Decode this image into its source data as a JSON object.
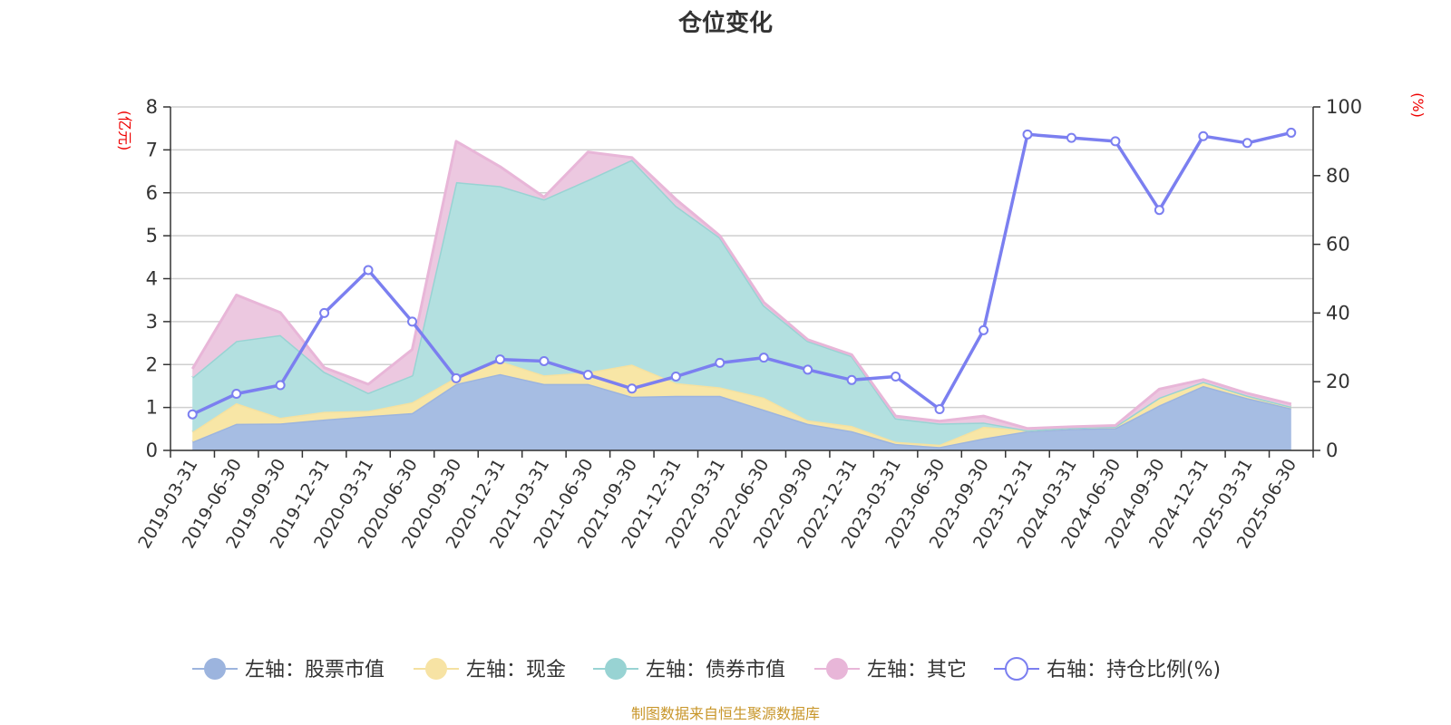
{
  "chart_data": {
    "type": "area",
    "title": "仓位变化",
    "left_axis": {
      "unit": "(亿元)",
      "ylim": [
        0,
        8
      ],
      "ticks": [
        "0",
        "1",
        "2",
        "3",
        "4",
        "5",
        "6",
        "7",
        "8"
      ]
    },
    "right_axis": {
      "unit": "(%)",
      "ylim": [
        0,
        100
      ],
      "ticks": [
        "0",
        "20",
        "40",
        "60",
        "80",
        "100"
      ]
    },
    "x_tick_labels": [
      "2019-03-31",
      "2019-06-30",
      "2019-09-30",
      "2019-12-31",
      "2020-03-31",
      "2020-06-30",
      "2020-09-30",
      "2020-12-31",
      "2021-03-31",
      "2021-06-30",
      "2021-09-30",
      "2021-12-31",
      "2022-03-31",
      "2022-06-30",
      "2022-09-30",
      "2022-12-31",
      "2023-03-31",
      "2023-06-30",
      "2023-09-30",
      "2023-12-31",
      "2024-03-31",
      "2024-06-30",
      "2024-09-30",
      "2024-12-31",
      "2025-03-31",
      "2025-06-30"
    ],
    "grid": true,
    "stacked": true,
    "legend_position": "bottom",
    "series": [
      {
        "name": "左轴：股票市值",
        "axis": "left",
        "kind": "area",
        "color": "#a6bde3",
        "line": "#9cb4de",
        "values": [
          0.2,
          0.62,
          0.63,
          0.72,
          0.8,
          0.87,
          1.55,
          1.78,
          1.55,
          1.55,
          1.25,
          1.27,
          1.27,
          0.95,
          0.62,
          0.45,
          0.15,
          0.08,
          0.28,
          0.45,
          0.5,
          0.52,
          1.05,
          1.5,
          1.22,
          0.98
        ]
      },
      {
        "name": "左轴：现金",
        "axis": "left",
        "kind": "area",
        "color": "#f8e6a6",
        "line": "#f5e1a0",
        "values": [
          0.23,
          0.48,
          0.13,
          0.18,
          0.12,
          0.25,
          0.15,
          0.3,
          0.2,
          0.27,
          0.75,
          0.3,
          0.2,
          0.28,
          0.08,
          0.12,
          0.05,
          0.05,
          0.27,
          0.02,
          0.03,
          0.04,
          0.18,
          0.1,
          0.06,
          0.04
        ]
      },
      {
        "name": "左轴：债券市值",
        "axis": "left",
        "kind": "area",
        "color": "#b3e0e0",
        "line": "#98d3d3",
        "values": [
          1.27,
          1.45,
          1.93,
          0.93,
          0.42,
          0.63,
          4.55,
          4.08,
          4.1,
          4.48,
          4.77,
          4.13,
          3.49,
          2.15,
          1.85,
          1.63,
          0.55,
          0.5,
          0.1,
          0,
          0,
          0,
          0,
          0,
          0,
          0
        ]
      },
      {
        "name": "左轴：其它",
        "axis": "left",
        "kind": "area",
        "color": "#ecc8e0",
        "line": "#e8b6d8",
        "values": [
          0.2,
          1.07,
          0.52,
          0.1,
          0.2,
          0.6,
          0.95,
          0.45,
          0.05,
          0.65,
          0.05,
          0.15,
          0.04,
          0.07,
          0.03,
          0.03,
          0.05,
          0.05,
          0.15,
          0.04,
          0.02,
          0.02,
          0.2,
          0.05,
          0.05,
          0.06
        ]
      },
      {
        "name": "右轴：持仓比例(%)",
        "axis": "right",
        "kind": "line",
        "color": "#7b7ff0",
        "values": [
          10.5,
          16.5,
          19,
          40,
          52.5,
          37.5,
          21,
          26.5,
          26,
          22,
          18,
          21.5,
          25.5,
          27,
          23.5,
          20.5,
          21.5,
          12,
          35,
          92,
          91,
          90,
          70,
          91.5,
          89.5,
          92.5
        ]
      }
    ]
  },
  "footer": "制图数据来自恒生聚源数据库"
}
